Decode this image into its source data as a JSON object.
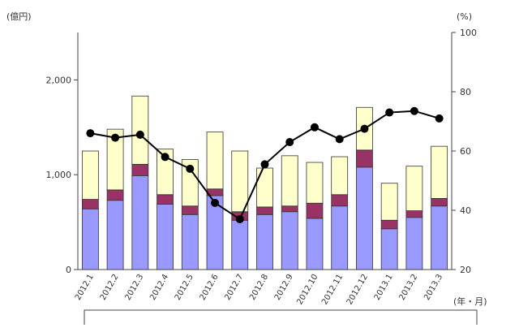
{
  "chart_data": {
    "type": "bar",
    "stacked": true,
    "left_unit_label": "(億円)",
    "right_unit_label": "(%)",
    "x_unit_label": "(年・月)",
    "categories": [
      "2012.1",
      "2012.2",
      "2012.3",
      "2012.4",
      "2012.5",
      "2012.6",
      "2012.7",
      "2012.8",
      "2012.9",
      "2012.10",
      "2012.11",
      "2012.12",
      "2013.1",
      "2013.2",
      "2013.3"
    ],
    "y_left": {
      "min": 0,
      "max": 2500,
      "ticks": [
        0,
        1000,
        2000
      ],
      "tick_labels": [
        "0",
        "1,000",
        "2,000"
      ]
    },
    "y_right": {
      "min": 20,
      "max": 100,
      "ticks": [
        20,
        40,
        60,
        80,
        100
      ],
      "tick_labels": [
        "20",
        "40",
        "60",
        "80",
        "100"
      ]
    },
    "grid": false,
    "series": [
      {
        "axis": "left",
        "color": "#9999ff",
        "values": [
          640,
          730,
          990,
          690,
          580,
          780,
          520,
          580,
          610,
          540,
          670,
          1080,
          430,
          550,
          670
        ]
      },
      {
        "axis": "left",
        "color": "#993366",
        "values": [
          100,
          110,
          120,
          100,
          90,
          70,
          90,
          80,
          60,
          160,
          120,
          180,
          90,
          70,
          80
        ]
      },
      {
        "axis": "left",
        "color": "#ffffcc",
        "values": [
          510,
          640,
          720,
          480,
          490,
          600,
          640,
          410,
          530,
          430,
          400,
          450,
          390,
          470,
          550
        ]
      },
      {
        "type": "line",
        "axis": "right",
        "color": "#000000",
        "values": [
          66,
          64.5,
          65.5,
          58,
          54,
          42.5,
          37,
          55.5,
          63,
          68,
          64,
          67.5,
          73,
          73.5,
          71
        ]
      }
    ]
  }
}
